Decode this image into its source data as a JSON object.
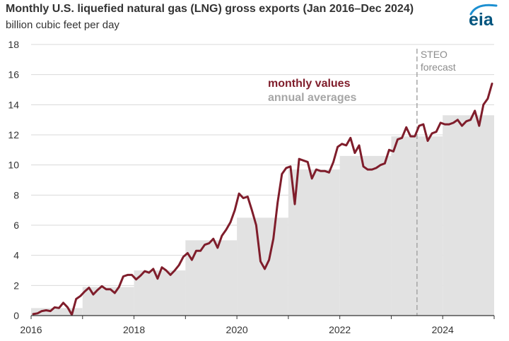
{
  "header": {
    "title": "Monthly U.S. liquefied natural gas (LNG) gross exports (Jan 2016–Dec 2024)",
    "subtitle": "billion cubic feet per day",
    "logo_text": "eia"
  },
  "chart_data": {
    "type": "line",
    "title": "Monthly U.S. liquefied natural gas (LNG) gross exports (Jan 2016–Dec 2024)",
    "ylabel": "billion cubic feet per day",
    "xlim": [
      2016,
      2025
    ],
    "ylim": [
      0,
      18
    ],
    "x_ticks": [
      "2016",
      "2018",
      "2020",
      "2022",
      "2024"
    ],
    "y_ticks": [
      "0",
      "2",
      "4",
      "6",
      "8",
      "10",
      "12",
      "14",
      "16",
      "18"
    ],
    "grid": "horizontal",
    "forecast_label": [
      "STEO",
      "forecast"
    ],
    "forecast_start": "2023-07",
    "colors": {
      "monthly": "#7f1d2b",
      "annual": "#e2e2e2",
      "annual_label": "#a6a6a6",
      "forecast_line": "#a6a6a6"
    },
    "series": [
      {
        "name": "monthly values",
        "kind": "line",
        "start": "2016-01",
        "values": [
          0.1,
          0.15,
          0.3,
          0.35,
          0.3,
          0.55,
          0.5,
          0.85,
          0.55,
          0.05,
          1.1,
          1.3,
          1.6,
          1.85,
          1.4,
          1.7,
          1.95,
          1.75,
          1.75,
          1.5,
          1.9,
          2.6,
          2.7,
          2.7,
          2.4,
          2.65,
          2.95,
          2.85,
          3.1,
          2.45,
          3.2,
          3.0,
          2.7,
          3.0,
          3.35,
          3.9,
          4.15,
          3.7,
          4.3,
          4.3,
          4.7,
          4.8,
          5.1,
          4.5,
          5.3,
          5.7,
          6.2,
          7.0,
          8.1,
          7.8,
          7.9,
          7.0,
          6.0,
          3.6,
          3.1,
          3.7,
          5.1,
          7.5,
          9.4,
          9.8,
          9.9,
          7.4,
          10.4,
          10.3,
          10.2,
          9.1,
          9.7,
          9.6,
          9.6,
          9.5,
          10.2,
          11.2,
          11.4,
          11.3,
          11.8,
          10.8,
          11.3,
          9.9,
          9.7,
          9.7,
          9.8,
          10.0,
          10.1,
          11.0,
          10.9,
          11.7,
          11.8,
          12.5,
          11.9,
          11.9,
          12.6,
          12.7,
          11.6,
          12.1,
          12.2,
          12.8,
          12.7,
          12.7,
          12.8,
          13.0,
          12.6,
          12.9,
          13.0,
          13.6,
          12.6,
          14.0,
          14.4,
          15.4
        ]
      },
      {
        "name": "annual averages",
        "kind": "step",
        "years": [
          "2016",
          "2017",
          "2018",
          "2019",
          "2020",
          "2021",
          "2022",
          "2023",
          "2024"
        ],
        "values": [
          0.5,
          1.9,
          3.0,
          5.0,
          6.5,
          9.7,
          10.6,
          11.9,
          13.3
        ]
      }
    ]
  }
}
